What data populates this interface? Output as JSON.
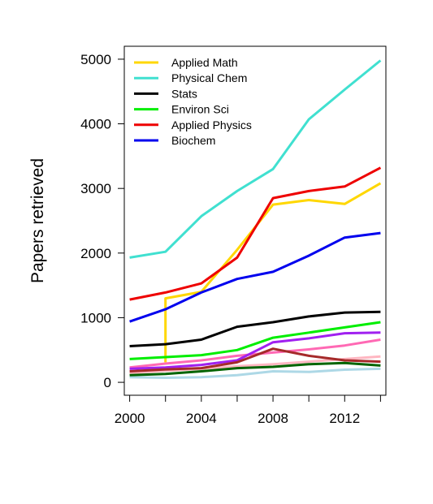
{
  "chart_data": {
    "type": "line",
    "title": "",
    "xlabel": "",
    "ylabel": "Papers retrieved",
    "x": [
      2000,
      2002,
      2004,
      2006,
      2008,
      2010,
      2012,
      2014
    ],
    "xticks": [
      2000,
      2004,
      2008,
      2012
    ],
    "xtick_labels": [
      "2000",
      "2004",
      "2008",
      "2012"
    ],
    "xlim": [
      1999.7,
      2014.3
    ],
    "yticks": [
      0,
      1000,
      2000,
      3000,
      4000,
      5000
    ],
    "ytick_labels": [
      "0",
      "1000",
      "2000",
      "3000",
      "4000",
      "5000"
    ],
    "ylim": [
      -200,
      5200
    ],
    "grid": false,
    "legend_position": "top-left",
    "series": [
      {
        "name": "",
        "color": "#add8e6",
        "values": [
          80,
          70,
          80,
          110,
          170,
          160,
          195,
          210
        ]
      },
      {
        "name": "",
        "color": "#ffb6c1",
        "values": [
          140,
          180,
          210,
          250,
          280,
          320,
          360,
          400
        ]
      },
      {
        "name": "",
        "color": "#ff69b4",
        "values": [
          230,
          290,
          340,
          410,
          460,
          510,
          570,
          660
        ]
      },
      {
        "name": "",
        "color": "#a020f0",
        "values": [
          210,
          230,
          270,
          340,
          620,
          680,
          760,
          770
        ]
      },
      {
        "name": "",
        "color": "#a52a2a",
        "values": [
          170,
          200,
          220,
          310,
          520,
          410,
          340,
          320
        ]
      },
      {
        "name": "",
        "color": "#006400",
        "values": [
          110,
          130,
          170,
          220,
          240,
          280,
          300,
          260
        ]
      },
      {
        "name": "Applied Math",
        "color": "#ffd700",
        "x": [
          2002,
          2002,
          2004,
          2006,
          2008,
          2010,
          2012,
          2014
        ],
        "values": [
          310,
          1300,
          1400,
          2050,
          2750,
          2820,
          2760,
          3080
        ]
      },
      {
        "name": "Environ Sci",
        "color": "#00ee00",
        "values": [
          360,
          390,
          420,
          500,
          690,
          770,
          850,
          930
        ]
      },
      {
        "name": "Stats",
        "color": "#000000",
        "values": [
          560,
          590,
          660,
          860,
          930,
          1020,
          1080,
          1090
        ]
      },
      {
        "name": "Biochem",
        "color": "#0000ee",
        "values": [
          940,
          1130,
          1390,
          1600,
          1710,
          1960,
          2240,
          2310
        ]
      },
      {
        "name": "Applied Physics",
        "color": "#ee0000",
        "values": [
          1280,
          1390,
          1530,
          1930,
          2850,
          2960,
          3030,
          3320
        ]
      },
      {
        "name": "Physical Chem",
        "color": "#40e0d0",
        "values": [
          1930,
          2020,
          2570,
          2960,
          3300,
          4070,
          4530,
          4980
        ]
      }
    ],
    "legend": [
      {
        "name": "Applied Math",
        "color": "#ffd700"
      },
      {
        "name": "Physical Chem",
        "color": "#40e0d0"
      },
      {
        "name": "Stats",
        "color": "#000000"
      },
      {
        "name": "Environ Sci",
        "color": "#00ee00"
      },
      {
        "name": "Applied Physics",
        "color": "#ee0000"
      },
      {
        "name": "Biochem",
        "color": "#0000ee"
      }
    ]
  }
}
